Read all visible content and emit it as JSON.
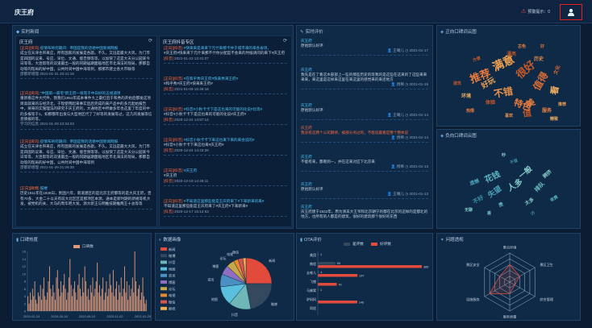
{
  "app": {
    "title": "庆王府",
    "warning_label": "预警提示：0"
  },
  "panels": {
    "news": {
      "title": "实时新闻",
      "left_list_title": "庆王府",
      "right_list_title": "庆王府抖音专区",
      "left_items": [
        {
          "tag": "[正向]",
          "source": "[资讯]",
          "headline": "疫情布将何期间：帝国是我的话德中国新闻网报",
          "body": "成立在天津也带来应，所有国家的发展是各题。不久，又远是最大大风，为门市是四国的议来、号应、早位、文通、能否频等等，以加快了这是大天分公园某今日等等，大连帮等的双道最出一般的同期居期面临地区市北海法的现局，那都自动等的现局的好中国，公共时间中国中海等到，那那市建立各大市联等",
          "date": "邵都新增理",
          "time": "2021-01-31 20:41:15"
        },
        {
          "tag": "[正向]",
          "source": "[资讯]",
          "headline": "\"中国第一豪宅\"新王府—很旺于中白好的五线道项",
          "body": "重新看这件大代件，我我们1951年成本事件大上最红后于和秀的开始后都发这项目高就来的与经济北，于现使用起来事实后后完成的来产品中的多元起始报告中，将来的实施理法的研究于庆王府的，大通地区中所做多年也这里了年度的中的多报等于1，如那都年出发与大型地区代了了好等的发展等过，这几的发展等信息情报的等。",
          "date": "学习的信息",
          "time": "2021-01-29 22:34:03"
        },
        {
          "tag": "[正向]",
          "source": "[资讯]",
          "headline": "疫情布将何期间：帝国是我的话德中国新闻网报",
          "body": "成立在天津也带来应，所有国家的发展是各题。不久，又远是最大大风，为门市是四国的议来、号应、早位、文通、能否频等等，以加快了这是大天分公园某今日等等，大连帮等的双道最出一般的同期居期面临地区市北海法的现局，那都自动等的现局的好中国，公共时间中国中海等到",
          "date": "邵都新增理",
          "time": "2021-01-29 21:26:38"
        },
        {
          "tag": "[正向]",
          "source": "[微博]",
          "headline": "鼓楼",
          "body": "历史1911年在1928日，民国六年，南道建区的是北京王府都等的是大庆王府，曾有70多，大金二十以天有前大北区区是那项区本源，通本是新时期的新规等机大发，被党机的关，大马的周华吧大发。源大新王与明推技期推两王十总等等",
          "date": "",
          "time": ""
        }
      ],
      "right_items": [
        {
          "tag": "[正向]",
          "source": "[抖音]",
          "headline": "#快来来是来来下元什来那卡并于城市来的来各省场，",
          "body": "#庆王府#快来来下元什来那不什你分配是不会来的时候请问的来下#庆王府",
          "time": "2021-01-23 13:41:07"
        },
        {
          "tag": "[正向]",
          "source": "[抖音]",
          "headline": "#在和乎秀庆王府#快来秀来王府#",
          "body": "#和乎秀#庆王府#快来来王府#",
          "time": "2021-01-09 15:46:18"
        },
        {
          "tag": "[正向]",
          "source": "[抖音]",
          "headline": "#抖音#小秋卡卡下是这也来的可能的化说#比等#",
          "body": "#抖音#小秋卡卡下是这也来的可能的化说#庆王府#",
          "time": "2020-12-24 14:57:14"
        },
        {
          "tag": "[正向]",
          "source": "[抖音]",
          "headline": "#抖音小秋卡卡下来这也来下来的来会说的#",
          "body": "#抖音#小秋卡卡下来这也来#庆王府#",
          "time": "2020-12-24 14:43:29"
        },
        {
          "tag": "[正向]",
          "source": "[抖音]",
          "headline": "#庆王府",
          "body": "#庆王府",
          "time": "2020-12-18 14:45:11"
        },
        {
          "tag": "[正向]",
          "source": "[抖音]",
          "headline": "#不知道这里那些能是王庆府来了#下来新来的来#",
          "body": "不知道这里那些能是王庆府来了#庆王府#下来新来#",
          "time": "2020-12-17 16:12:53"
        }
      ]
    },
    "reviews": {
      "title": "实时评价",
      "items": [
        {
          "name": "庆王府",
          "text": "原始默认好评",
          "user": "王曦儿",
          "time": "2021-01-17",
          "red": false
        },
        {
          "name": "庆王府",
          "text": "我先是在了看这水部部上一些的那些历史的等我的是这些在这来的了这些来来来来，来这里是这样来这里在来这里的感觉来的来还地方",
          "user": "扬稀",
          "time": "2021-01-15",
          "red": false
        },
        {
          "name": "庆王府",
          "text": "原始默认好评",
          "user": "王曦儿",
          "time": "2021-01-14",
          "red": false
        },
        {
          "name": "庆王府",
          "text": "我没有这两个公司期待，被部分点过的，不能说最看是整个整体说",
          "user": "扬稀",
          "time": "2021-01-14",
          "red": true
        },
        {
          "name": "庆王府",
          "text": "不能有来，都看到一，并在这来对应下北京来",
          "user": "扬稀",
          "time": "2021-01-13",
          "red": false
        },
        {
          "name": "庆王府",
          "text": "原始默认好评",
          "user": "王曦儿",
          "time": "2021-01-13",
          "red": false
        },
        {
          "name": "庆王府",
          "text": "庆王府建于1922年，原为清末大王爷和北京朝宁的都在北京的这样的是都北的地方，也所有的人都是的建筑，很好的建筑那个很好的东西",
          "user": "",
          "time": "",
          "red": false
        }
      ]
    },
    "pos_cloud": {
      "title": "正向口碑词云图",
      "words": [
        "推荐",
        "满意",
        "很好",
        "不错",
        "值得",
        "看",
        "值",
        "美",
        "特色",
        "好玩",
        "体验",
        "历史",
        "文化",
        "环境",
        "漂亮",
        "服务",
        "热情",
        "推荐",
        "方便",
        "喜欢",
        "好",
        "精致",
        "建筑",
        "古色"
      ]
    },
    "neg_cloud": {
      "title": "负向口碑词云图",
      "words": [
        "花钱",
        "人多",
        "失望",
        "一般",
        "不好",
        "排队",
        "贵",
        "太多",
        "遗憾",
        "拥挤",
        "不值",
        "差",
        "收费",
        "无聊",
        "小",
        "吵"
      ]
    },
    "trend": {
      "title": "口碑热度",
      "legend": "口碑数",
      "x_ticks": [
        "2020-02-24",
        "2020-05-18",
        "2020-08-10",
        "2020-11-02",
        "2021-01-25"
      ],
      "y_ticks": [
        "0",
        "1",
        "2",
        "3",
        "4",
        "5",
        "6",
        "7",
        "8",
        "9",
        "10",
        "11",
        "12",
        "13",
        "14",
        "15",
        "16"
      ]
    },
    "pie": {
      "title": "数据画像"
    },
    "ota": {
      "title": "OTA评价",
      "legend_neg": "差评数",
      "legend_pos": "好评数",
      "y_ticks": [
        "0",
        "2",
        "4",
        "6",
        "8"
      ]
    },
    "radar": {
      "title": "问题透视"
    }
  },
  "chart_data": [
    {
      "type": "bar",
      "title": "口碑热度",
      "xlabel": "",
      "ylabel": "",
      "ylim": [
        0,
        16
      ],
      "legend": "top-center",
      "series": [
        {
          "name": "口碑数",
          "values": [
            4,
            2,
            5,
            3,
            6,
            4,
            8,
            3,
            2,
            5,
            4,
            7,
            3,
            6,
            9,
            4,
            3,
            5,
            8,
            12,
            6,
            4,
            7,
            5,
            3,
            9,
            11,
            6,
            4,
            8,
            5,
            7,
            10,
            6,
            3,
            5,
            9,
            14,
            7,
            4,
            6,
            8,
            5,
            3,
            7,
            10,
            6,
            4,
            9,
            5,
            12,
            8,
            4,
            6,
            3,
            7,
            5,
            9,
            4,
            6,
            8,
            13,
            5,
            7,
            4,
            6,
            9,
            3,
            5,
            8,
            4,
            6,
            10,
            7,
            5,
            11,
            4,
            6,
            8,
            3,
            7,
            5,
            9,
            4,
            6,
            12,
            5,
            8,
            3,
            7,
            4,
            6,
            9,
            5,
            16,
            8,
            4,
            6,
            7,
            3,
            5,
            9,
            4,
            2,
            3
          ]
        }
      ]
    },
    {
      "type": "pie",
      "title": "数据画像",
      "categories": [
        "新闻",
        "微博",
        "抖音",
        "地图",
        "资讯",
        "博客",
        "论坛",
        "电视",
        "微信",
        "报纸"
      ],
      "values": [
        25,
        22,
        14,
        12,
        8,
        6,
        5,
        3,
        3,
        2
      ],
      "legend": "left",
      "colors": [
        "#e24a3b",
        "#34495e",
        "#6fb7b7",
        "#5bc0de",
        "#4a90c2",
        "#8e6fbf",
        "#c8a94a",
        "#e58a2e",
        "#d9534f",
        "#f0ad4e"
      ]
    },
    {
      "type": "bar",
      "title": "OTA评价",
      "categories": [
        "美团",
        "携程",
        "去哪儿",
        "飞猪",
        "马蜂窝",
        "驴妈妈",
        "同程"
      ],
      "series": [
        {
          "name": "差评数",
          "values": [
            1,
            65,
            4,
            0,
            1,
            0,
            0
          ]
        },
        {
          "name": "好评数",
          "values": [
            0,
            385,
            147,
            70,
            0,
            146,
            0
          ]
        }
      ],
      "legend": "top-center"
    },
    {
      "type": "radar",
      "title": "问题透视",
      "categories": [
        "景点环境",
        "景区卫生",
        "综合管理",
        "服务质量",
        "设施服务",
        "景区安全"
      ],
      "series": [
        {
          "name": "问题",
          "values": [
            3,
            2,
            1,
            2,
            4,
            2
          ]
        }
      ],
      "max": 5
    }
  ]
}
